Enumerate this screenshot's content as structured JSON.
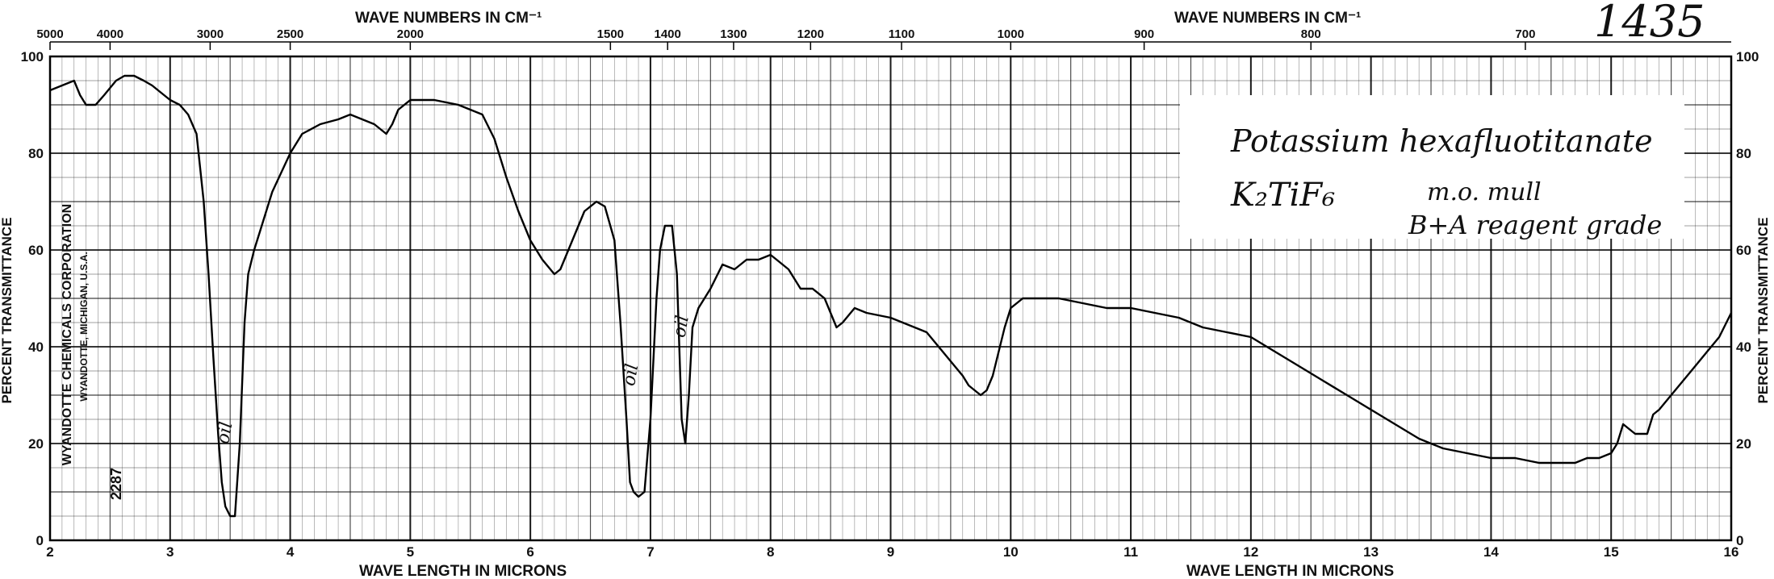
{
  "sheet_number": "1435",
  "header": {
    "top_label_left": "WAVE NUMBERS IN CM⁻¹",
    "top_label_right": "WAVE NUMBERS IN CM⁻¹",
    "bottom_label_left": "WAVE LENGTH IN MICRONS",
    "bottom_label_right": "WAVE LENGTH IN MICRONS",
    "left_axis_label": "PERCENT TRANSMITTANCE",
    "right_axis_label": "PERCENT TRANSMITTANCE"
  },
  "publisher": {
    "name": "WYANDOTTE CHEMICALS CORPORATION",
    "location": "WYANDOTTE, MICHIGAN, U.S.A.",
    "number": "2287"
  },
  "sample": {
    "name": "Potassium hexafluotitanate",
    "formula": "K₂TiF₆",
    "method": "m.o. mull",
    "grade": "B+A reagent grade"
  },
  "chart_data": {
    "type": "line",
    "title": "",
    "xlabel": "WAVE LENGTH IN MICRONS",
    "ylabel": "PERCENT TRANSMITTANCE",
    "xlim": [
      2,
      16
    ],
    "ylim": [
      0,
      100
    ],
    "x_ticks": [
      2,
      3,
      4,
      5,
      6,
      7,
      8,
      9,
      10,
      11,
      12,
      13,
      14,
      15,
      16
    ],
    "y_ticks_left": [
      0,
      20,
      40,
      60,
      80,
      100
    ],
    "y_ticks_right": [
      0,
      20,
      40,
      60,
      80,
      100
    ],
    "wavenumber_ticks": [
      {
        "label": "5000",
        "cm": 5000
      },
      {
        "label": "4000",
        "cm": 4000
      },
      {
        "label": "3000",
        "cm": 3000
      },
      {
        "label": "2500",
        "cm": 2500
      },
      {
        "label": "2000",
        "cm": 2000
      },
      {
        "label": "1500",
        "cm": 1500
      },
      {
        "label": "1400",
        "cm": 1400
      },
      {
        "label": "1300",
        "cm": 1300
      },
      {
        "label": "1200",
        "cm": 1200
      },
      {
        "label": "1100",
        "cm": 1100
      },
      {
        "label": "1000",
        "cm": 1000
      },
      {
        "label": "900",
        "cm": 900
      },
      {
        "label": "800",
        "cm": 800
      },
      {
        "label": "700",
        "cm": 700
      }
    ],
    "annotations": [
      {
        "text": "oil",
        "x": 3.5,
        "y": 22
      },
      {
        "text": "oil",
        "x": 6.88,
        "y": 34
      },
      {
        "text": "oil",
        "x": 7.3,
        "y": 44
      }
    ],
    "series": [
      {
        "x": [
          2.0,
          2.1,
          2.2,
          2.25,
          2.3,
          2.38,
          2.45,
          2.55,
          2.62,
          2.7,
          2.78,
          2.85,
          2.9,
          3.0,
          3.08,
          3.15,
          3.22,
          3.28,
          3.32,
          3.36,
          3.4,
          3.43,
          3.46,
          3.5,
          3.54,
          3.58,
          3.62,
          3.65,
          3.7,
          3.75,
          3.85,
          4.0,
          4.1,
          4.25,
          4.4,
          4.5,
          4.6,
          4.7,
          4.8,
          4.85,
          4.9,
          5.0,
          5.2,
          5.4,
          5.6,
          5.7,
          5.8,
          5.9,
          6.0,
          6.1,
          6.2,
          6.25,
          6.35,
          6.45,
          6.55,
          6.62,
          6.7,
          6.75,
          6.8,
          6.83,
          6.86,
          6.9,
          6.95,
          7.0,
          7.05,
          7.08,
          7.12,
          7.18,
          7.22,
          7.26,
          7.29,
          7.32,
          7.35,
          7.4,
          7.5,
          7.6,
          7.7,
          7.8,
          7.9,
          8.0,
          8.05,
          8.15,
          8.25,
          8.35,
          8.45,
          8.5,
          8.55,
          8.6,
          8.7,
          8.8,
          9.0,
          9.2,
          9.3,
          9.4,
          9.5,
          9.6,
          9.65,
          9.7,
          9.75,
          9.8,
          9.85,
          9.9,
          9.95,
          10.0,
          10.1,
          10.2,
          10.4,
          10.6,
          10.8,
          11.0,
          11.2,
          11.4,
          11.6,
          11.8,
          12.0,
          12.2,
          12.4,
          12.6,
          12.8,
          13.0,
          13.2,
          13.4,
          13.6,
          13.8,
          14.0,
          14.2,
          14.4,
          14.6,
          14.7,
          14.8,
          14.9,
          15.0,
          15.05,
          15.1,
          15.15,
          15.2,
          15.3,
          15.35,
          15.4,
          15.5,
          15.6,
          15.7,
          15.8,
          15.9,
          16.0
        ],
        "y": [
          93,
          94,
          95,
          92,
          90,
          90,
          92,
          95,
          96,
          96,
          95,
          94,
          93,
          91,
          90,
          88,
          84,
          70,
          55,
          38,
          22,
          12,
          7,
          5,
          5,
          20,
          45,
          55,
          60,
          64,
          72,
          80,
          84,
          86,
          87,
          88,
          87,
          86,
          84,
          86,
          89,
          91,
          91,
          90,
          88,
          83,
          75,
          68,
          62,
          58,
          55,
          56,
          62,
          68,
          70,
          69,
          62,
          45,
          25,
          12,
          10,
          9,
          10,
          25,
          50,
          60,
          65,
          65,
          55,
          25,
          20,
          30,
          44,
          48,
          52,
          57,
          56,
          58,
          58,
          59,
          58,
          56,
          52,
          52,
          50,
          47,
          44,
          45,
          48,
          47,
          46,
          44,
          43,
          40,
          37,
          34,
          32,
          31,
          30,
          31,
          34,
          39,
          44,
          48,
          50,
          50,
          50,
          49,
          48,
          48,
          47,
          46,
          44,
          43,
          42,
          39,
          36,
          33,
          30,
          27,
          24,
          21,
          19,
          18,
          17,
          17,
          16,
          16,
          16,
          17,
          17,
          18,
          20,
          24,
          23,
          22,
          22,
          26,
          27,
          30,
          33,
          36,
          39,
          42,
          47
        ]
      }
    ]
  }
}
